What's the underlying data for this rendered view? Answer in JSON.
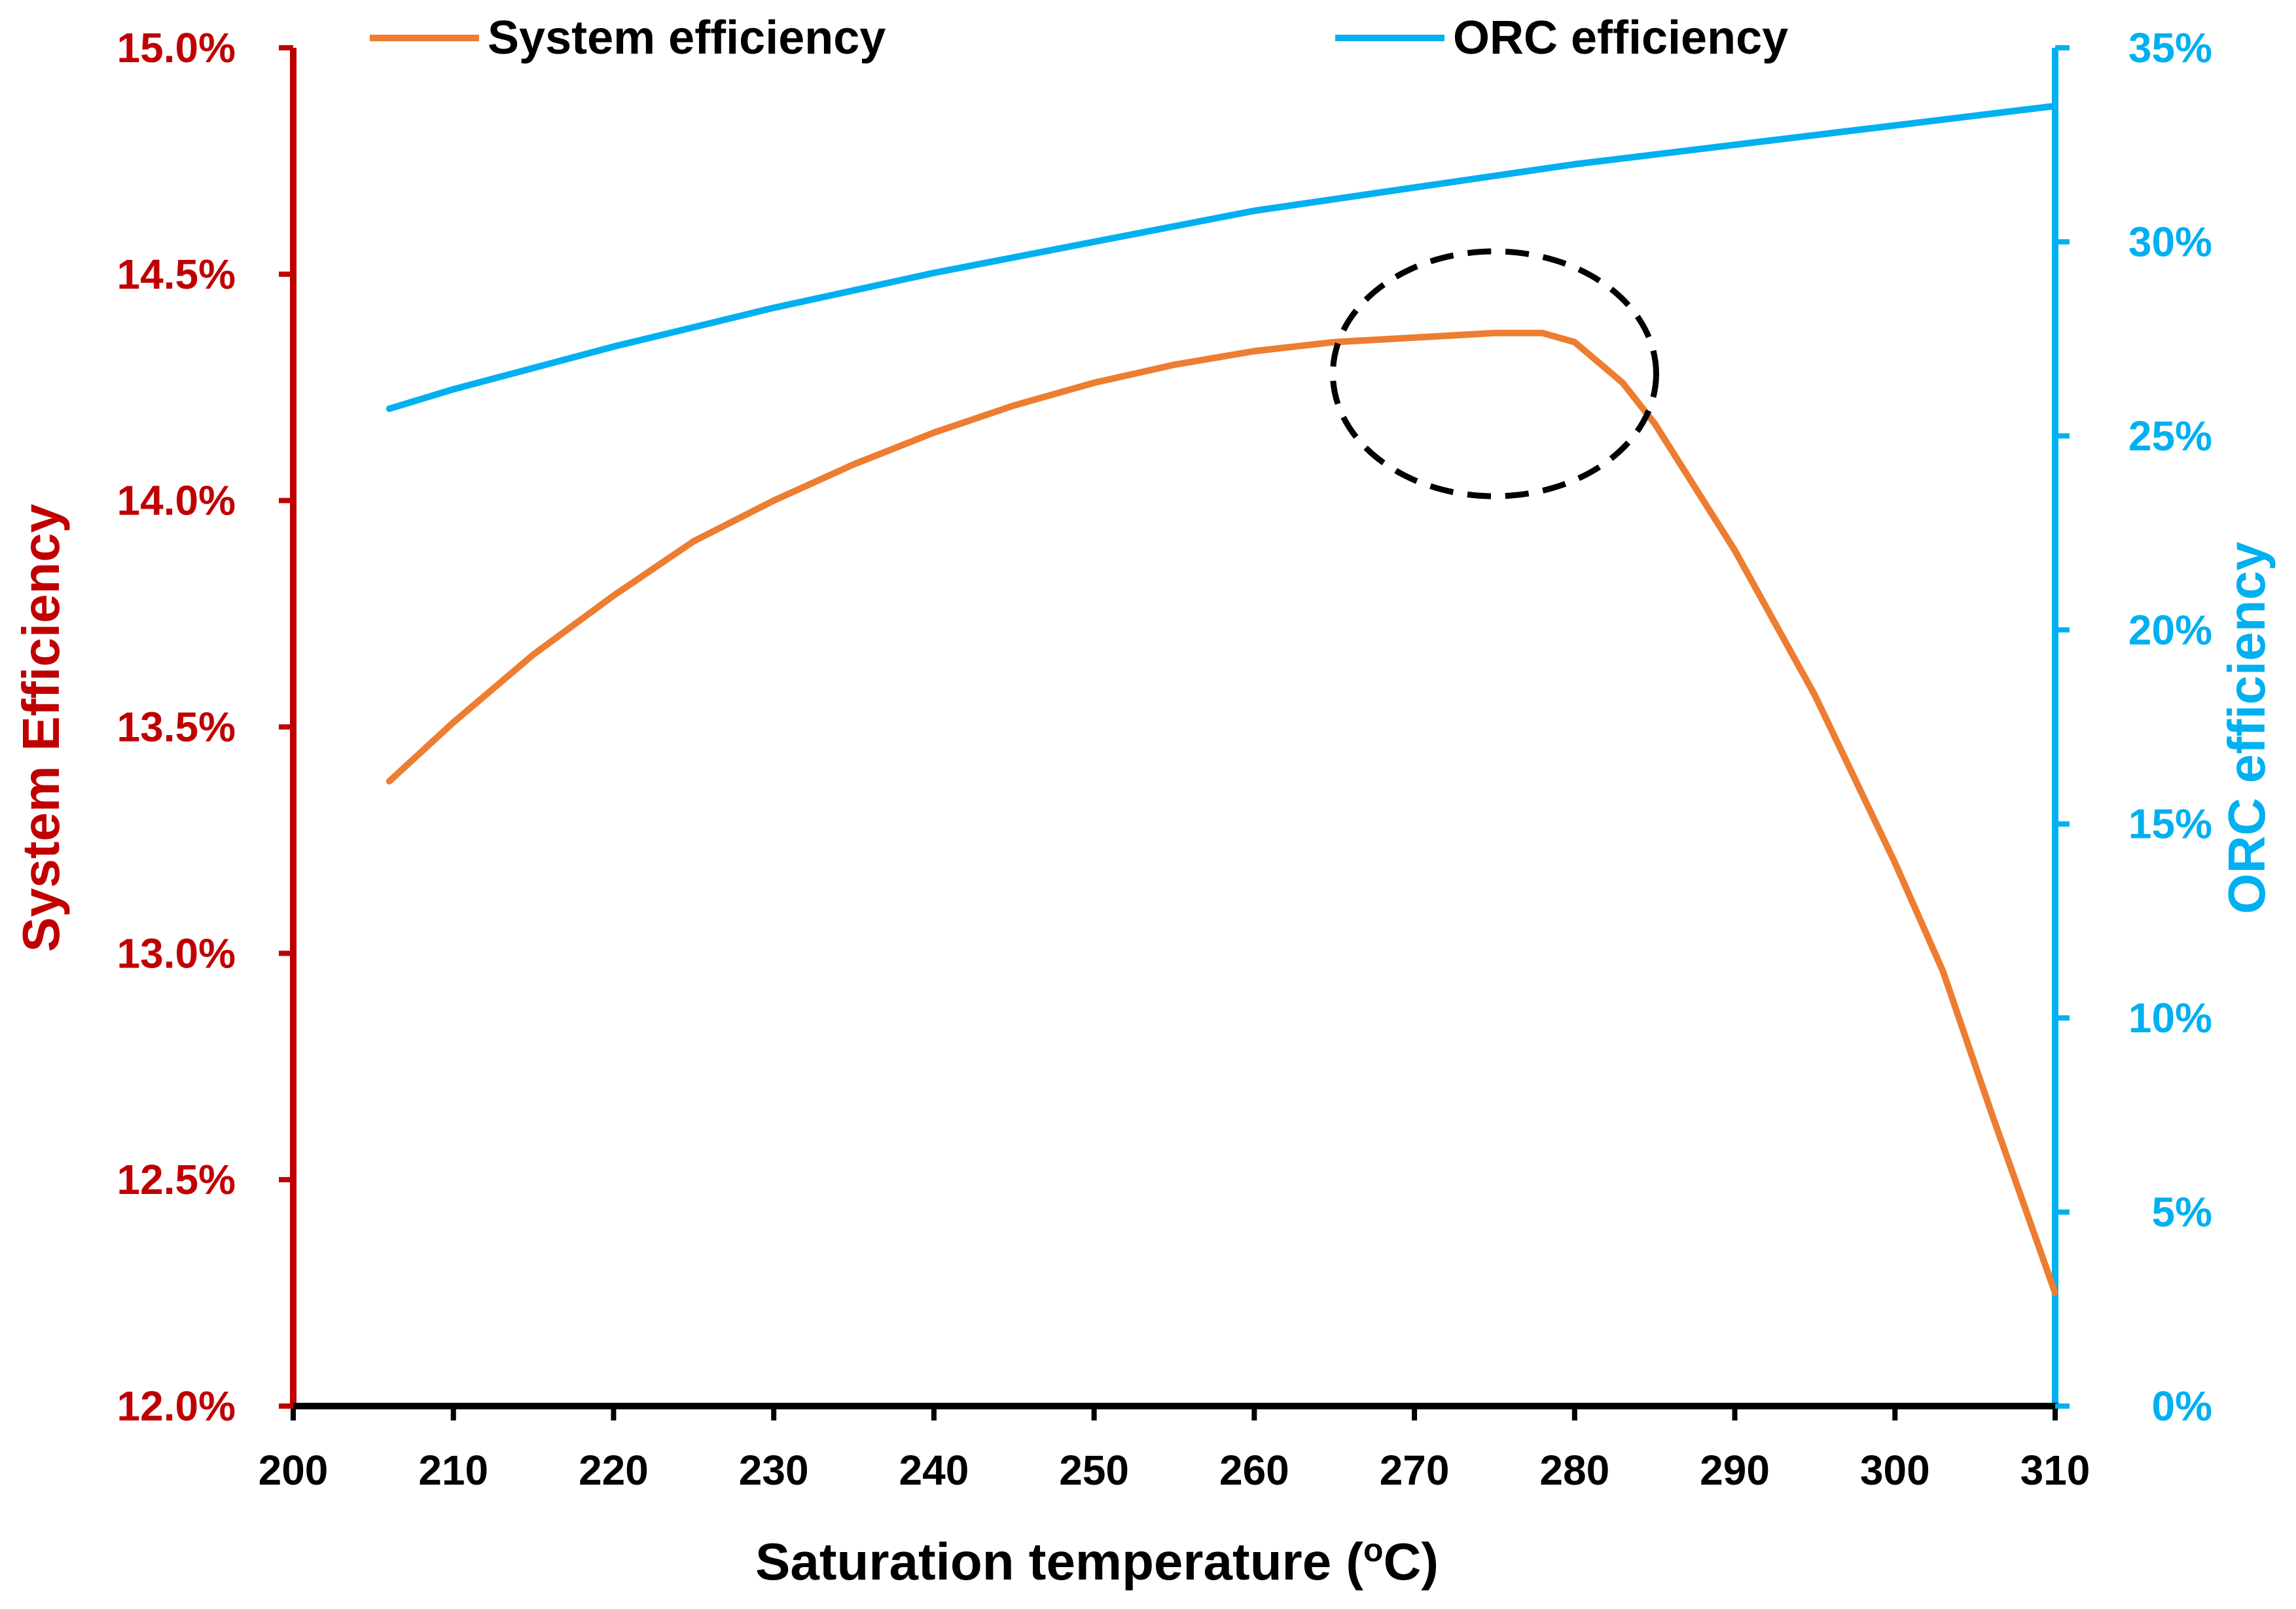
{
  "chart_data": {
    "type": "line",
    "xlabel_main": "Saturation temperature (",
    "xlabel_sup": "o",
    "xlabel_end": "C)",
    "ylabel_left": "System Efficiency",
    "ylabel_right": "ORC efficiency",
    "x_ticks": [
      "200",
      "210",
      "220",
      "230",
      "240",
      "250",
      "260",
      "270",
      "280",
      "290",
      "300",
      "310"
    ],
    "y_left_ticks": [
      "12.0%",
      "12.5%",
      "13.0%",
      "13.5%",
      "14.0%",
      "14.5%",
      "15.0%"
    ],
    "y_right_ticks": [
      "0%",
      "5%",
      "10%",
      "15%",
      "20%",
      "25%",
      "30%",
      "35%"
    ],
    "xlim": [
      200,
      310
    ],
    "ylim_left": [
      12.0,
      15.0
    ],
    "ylim_right": [
      0,
      35
    ],
    "series": [
      {
        "name": "System efficiency",
        "axis": "left",
        "color": "#ED7D31",
        "x": [
          206,
          210,
          215,
          220,
          225,
          230,
          235,
          240,
          245,
          250,
          255,
          260,
          265,
          270,
          275,
          278,
          280,
          283,
          285,
          290,
          295,
          300,
          303,
          306,
          310
        ],
        "y": [
          13.38,
          13.51,
          13.66,
          13.79,
          13.91,
          14.0,
          14.08,
          14.15,
          14.21,
          14.26,
          14.3,
          14.33,
          14.35,
          14.36,
          14.37,
          14.37,
          14.35,
          14.26,
          14.17,
          13.89,
          13.57,
          13.2,
          12.96,
          12.65,
          12.25
        ]
      },
      {
        "name": "ORC efficiency",
        "axis": "right",
        "color": "#00B0F0",
        "x": [
          206,
          210,
          220,
          230,
          240,
          250,
          260,
          270,
          280,
          290,
          300,
          310
        ],
        "y": [
          25.7,
          26.2,
          27.3,
          28.3,
          29.2,
          30.0,
          30.8,
          31.4,
          32.0,
          32.5,
          33.0,
          33.5
        ]
      }
    ],
    "annotation": {
      "shape": "dashed-ellipse",
      "x_center": 275,
      "y_center_left": 14.28
    },
    "colors": {
      "left_axis": "#C00000",
      "right_axis": "#00B0F0",
      "x_axis": "#000000"
    },
    "grid": false,
    "legend_position": "top"
  }
}
